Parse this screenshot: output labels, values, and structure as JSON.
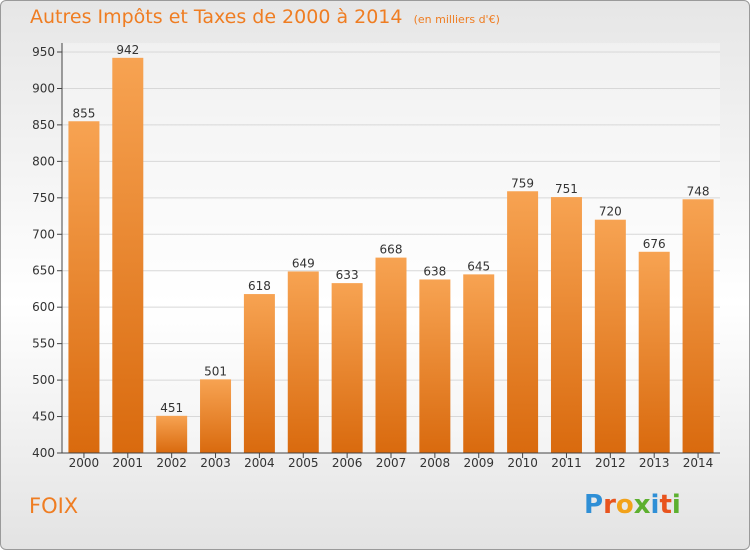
{
  "page": {
    "title": "Autres Impôts et Taxes de 2000 à 2014",
    "subtitle": "(en milliers d'€)",
    "place": "FOIX",
    "logo_text": "Proxiti",
    "logo_letters": [
      {
        "char": "P",
        "color": "#2f8fd6"
      },
      {
        "char": "r",
        "color": "#e8541e"
      },
      {
        "char": "o",
        "color": "#f2a21a"
      },
      {
        "char": "x",
        "color": "#5db02f"
      },
      {
        "char": "i",
        "color": "#2f8fd6"
      },
      {
        "char": "t",
        "color": "#e8541e"
      },
      {
        "char": "i",
        "color": "#5db02f"
      }
    ]
  },
  "colors": {
    "accent": "#ef7d22",
    "bar_top": "#f7a352",
    "bar_bottom": "#d96a0e",
    "grid": "#d8d8d8",
    "axis": "#444444"
  },
  "chart_data": {
    "type": "bar",
    "categories": [
      "2000",
      "2001",
      "2002",
      "2003",
      "2004",
      "2005",
      "2006",
      "2007",
      "2008",
      "2009",
      "2010",
      "2011",
      "2012",
      "2013",
      "2014"
    ],
    "values": [
      855,
      942,
      451,
      501,
      618,
      649,
      633,
      668,
      638,
      645,
      759,
      751,
      720,
      676,
      748
    ],
    "ylim": [
      400,
      950
    ],
    "yticks": [
      400,
      450,
      500,
      550,
      600,
      650,
      700,
      750,
      800,
      850,
      900,
      950
    ],
    "grid": true,
    "data_labels": true,
    "title": "Autres Impôts et Taxes de 2000 à 2014",
    "ylabel": "",
    "xlabel": ""
  }
}
